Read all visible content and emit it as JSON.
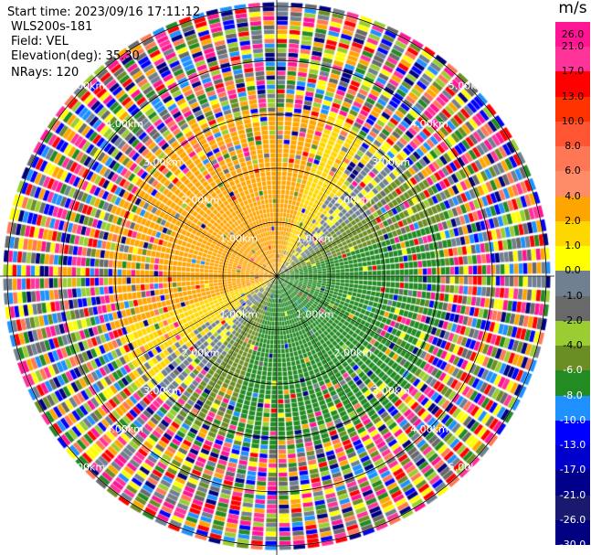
{
  "header": {
    "start_time": "Start time: 2023/09/16 17:11:12",
    "instrument": "WLS200s-181",
    "field": "Field: VEL",
    "elevation": "Elevation(deg): 35.30",
    "nrays": "NRays: 120"
  },
  "ring_labels": [
    "1.00km",
    "2.00km",
    "3.00km",
    "4.00km",
    "5.00km"
  ],
  "colorbar": {
    "unit": "m/s",
    "ticks": [
      "26.0",
      "21.0",
      "17.0",
      "13.0",
      "10.0",
      "8.0",
      "6.0",
      "4.0",
      "2.0",
      "1.0",
      "0.0",
      "-1.0",
      "-2.0",
      "-4.0",
      "-6.0",
      "-8.0",
      "-10.0",
      "-13.0",
      "-17.0",
      "-21.0",
      "-26.0",
      "-30.0"
    ],
    "colors": [
      "#ff1493",
      "#ff3399",
      "#ff0000",
      "#ff3300",
      "#ff5533",
      "#ff7755",
      "#ff8c69",
      "#ffa500",
      "#ffd700",
      "#ffff00",
      "#708090",
      "#696969",
      "#9acd32",
      "#6b8e23",
      "#228b22",
      "#1e90ff",
      "#0000ff",
      "#0000cd",
      "#00008b",
      "#191970",
      "#000080",
      "#1a1a5e"
    ]
  },
  "chart_data": {
    "type": "heatmap",
    "title": "",
    "field": "VEL",
    "units": "m/s",
    "nrays": 120,
    "range_rings_km": [
      1,
      2,
      3,
      4,
      5
    ],
    "value_range": [
      -30,
      30
    ],
    "description_of_pattern": "near-range: positive velocities (orange/yellow) toward north-west, negative (green) toward south-east; far range noisy"
  }
}
